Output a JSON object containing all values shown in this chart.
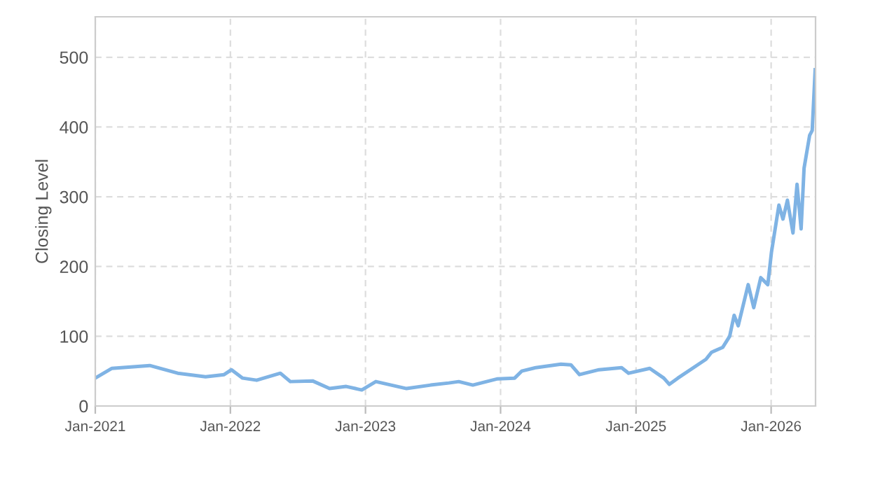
{
  "chart_data": {
    "type": "line",
    "ylabel": "Closing Level",
    "color": "#7fb3e4",
    "grid": true,
    "legend": false,
    "marker": "none",
    "line_style": "solid",
    "x": [
      "2021-01-01",
      "2021-02-15",
      "2021-05-28",
      "2021-08-12",
      "2021-10-26",
      "2021-12-15",
      "2022-01-04",
      "2022-02-03",
      "2022-03-13",
      "2022-05-16",
      "2022-06-12",
      "2022-08-11",
      "2022-09-26",
      "2022-11-10",
      "2022-12-22",
      "2023-01-29",
      "2023-04-22",
      "2023-06-26",
      "2023-08-14",
      "2023-09-10",
      "2023-10-18",
      "2023-12-24",
      "2024-02-08",
      "2024-02-27",
      "2024-04-05",
      "2024-06-12",
      "2024-07-09",
      "2024-08-01",
      "2024-09-23",
      "2024-11-23",
      "2024-12-12",
      "2025-02-07",
      "2025-03-17",
      "2025-04-01",
      "2025-04-24",
      "2025-07-09",
      "2025-07-24",
      "2025-08-23",
      "2025-09-11",
      "2025-09-23",
      "2025-10-04",
      "2025-10-31",
      "2025-11-15",
      "2025-12-04",
      "2025-12-23",
      "2026-01-02",
      "2026-01-22",
      "2026-02-02",
      "2026-02-14",
      "2026-03-01",
      "2026-03-12",
      "2026-03-23",
      "2026-03-31",
      "2026-04-15",
      "2026-04-22",
      "2026-04-30"
    ],
    "values": [
      40,
      54,
      58,
      47,
      42,
      45,
      52,
      40,
      37,
      47,
      35,
      36,
      25,
      28,
      23,
      35,
      25,
      30,
      33,
      35,
      30,
      39,
      40,
      50,
      55,
      60,
      59,
      45,
      52,
      55,
      47,
      54,
      40,
      31,
      40,
      67,
      77,
      84,
      100,
      130,
      115,
      174,
      141,
      184,
      174,
      221,
      288,
      268,
      295,
      248,
      318,
      254,
      341,
      388,
      395,
      482
    ],
    "xlim": [
      "2021-01-01",
      "2026-05-01"
    ],
    "xticks": [
      {
        "value": "2021-01-01",
        "label": "Jan-2021"
      },
      {
        "value": "2022-01-01",
        "label": "Jan-2022"
      },
      {
        "value": "2023-01-01",
        "label": "Jan-2023"
      },
      {
        "value": "2024-01-01",
        "label": "Jan-2024"
      },
      {
        "value": "2025-01-01",
        "label": "Jan-2025"
      },
      {
        "value": "2026-01-01",
        "label": "Jan-2026"
      }
    ],
    "ylim": [
      0,
      558
    ],
    "yticks": [
      0,
      100,
      200,
      300,
      400,
      500
    ]
  }
}
